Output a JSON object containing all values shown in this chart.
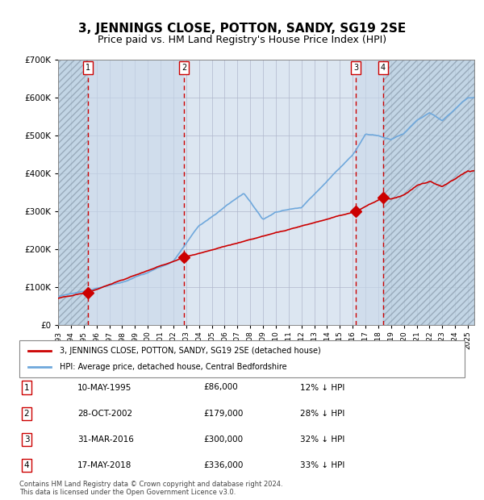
{
  "title": "3, JENNINGS CLOSE, POTTON, SANDY, SG19 2SE",
  "subtitle": "Price paid vs. HM Land Registry's House Price Index (HPI)",
  "sale_dates_num": [
    1995.36,
    2002.83,
    2016.25,
    2018.38
  ],
  "sale_prices": [
    86000,
    179000,
    300000,
    336000
  ],
  "sale_labels": [
    "1",
    "2",
    "3",
    "4"
  ],
  "sale_pct": [
    "12% ↓ HPI",
    "28% ↓ HPI",
    "32% ↓ HPI",
    "33% ↓ HPI"
  ],
  "sale_date_strs": [
    "10-MAY-1995",
    "28-OCT-2002",
    "31-MAR-2016",
    "17-MAY-2018"
  ],
  "sale_prices_str": [
    "£86,000",
    "£179,000",
    "£300,000",
    "£336,000"
  ],
  "hpi_color": "#6fa8dc",
  "price_color": "#cc0000",
  "marker_color": "#cc0000",
  "dashed_line_color": "#cc0000",
  "background_color": "#ffffff",
  "chart_bg": "#dce6f1",
  "hatched_bg": "#c5d5e8",
  "grid_color": "#aaaacc",
  "ylim": [
    0,
    700000
  ],
  "xlim_start": 1993.0,
  "xlim_end": 2025.5,
  "legend_label_price": "3, JENNINGS CLOSE, POTTON, SANDY, SG19 2SE (detached house)",
  "legend_label_hpi": "HPI: Average price, detached house, Central Bedfordshire",
  "footer": "Contains HM Land Registry data © Crown copyright and database right 2024.\nThis data is licensed under the Open Government Licence v3.0."
}
